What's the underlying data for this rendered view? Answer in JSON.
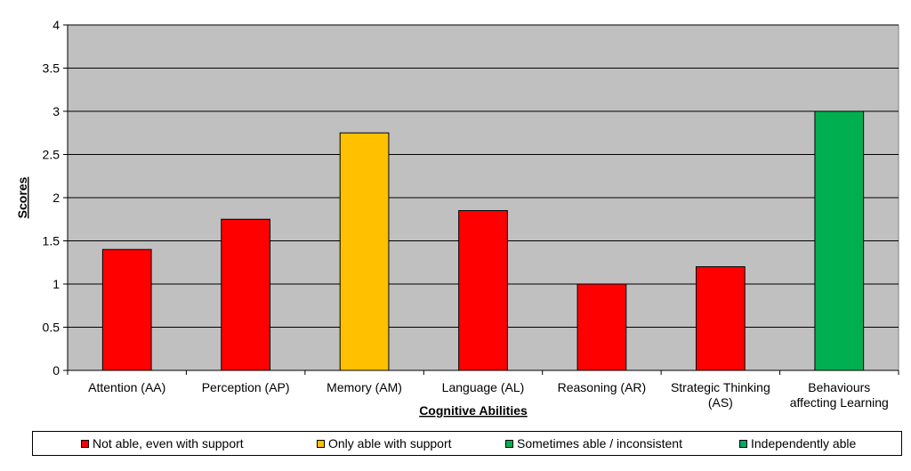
{
  "chart_data": {
    "type": "bar",
    "title": "",
    "xlabel": "Cognitive Abilities",
    "ylabel": "Scores",
    "ylim": [
      0,
      4
    ],
    "yticks": [
      "0",
      "0.5",
      "1",
      "1.5",
      "2",
      "2.5",
      "3",
      "3.5",
      "4"
    ],
    "grid": true,
    "plot_background": "#c0c0c0",
    "categories": [
      [
        "Attention (AA)"
      ],
      [
        "Perception (AP)"
      ],
      [
        "Memory (AM)"
      ],
      [
        "Language (AL)"
      ],
      [
        "Reasoning (AR)"
      ],
      [
        "Strategic Thinking",
        "(AS)"
      ],
      [
        "Behaviours",
        "affecting Learning"
      ]
    ],
    "values": [
      1.4,
      1.75,
      2.75,
      1.85,
      1.0,
      1.2,
      3.0
    ],
    "bar_colors": [
      "#ff0000",
      "#ff0000",
      "#ffc000",
      "#ff0000",
      "#ff0000",
      "#ff0000",
      "#00b050"
    ],
    "legend_position": "bottom",
    "legend": [
      {
        "label": "Not able, even with support",
        "color": "#ff0000"
      },
      {
        "label": "Only able with support",
        "color": "#ffc000"
      },
      {
        "label": "Sometimes able / inconsistent",
        "color": "#00b050"
      },
      {
        "label": "Independently able",
        "color": "#00a86b"
      }
    ]
  }
}
